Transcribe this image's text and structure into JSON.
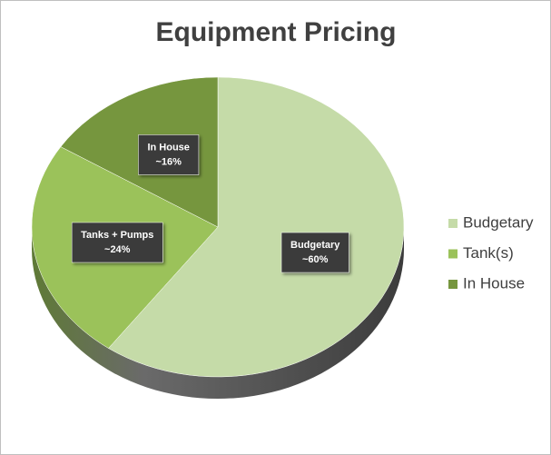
{
  "chart_data": {
    "type": "pie",
    "title": "Equipment Pricing",
    "categories": [
      "Budgetary",
      "Tank(s)",
      "In House"
    ],
    "values": [
      60,
      24,
      16
    ],
    "value_labels": [
      "~60%",
      "~24%",
      "~16%"
    ],
    "data_label_names": [
      "Budgetary",
      "Tanks + Pumps",
      "In House"
    ],
    "colors": [
      "#c5dba8",
      "#9bc25a",
      "#76963e"
    ],
    "legend": "right"
  }
}
